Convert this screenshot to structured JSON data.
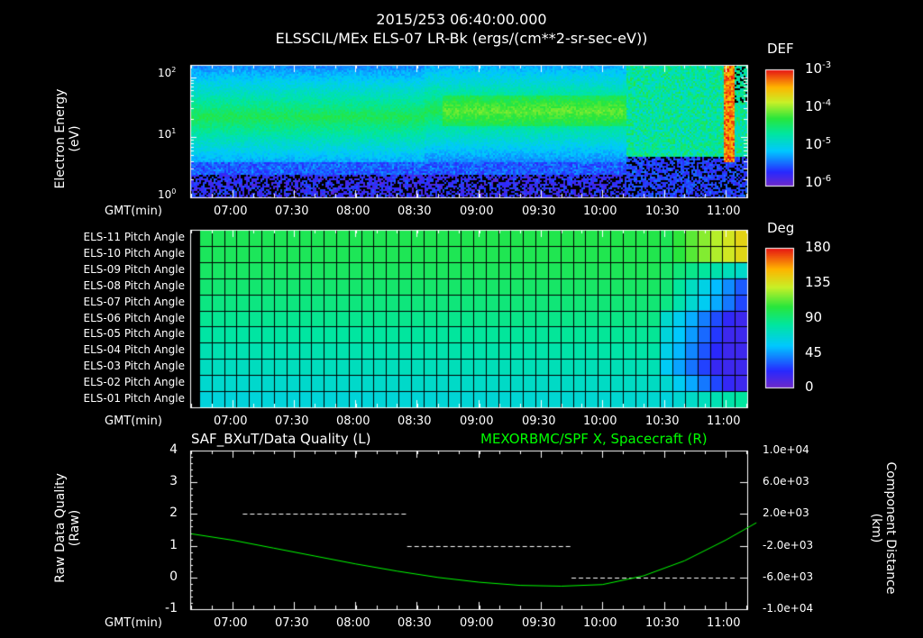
{
  "header": {
    "title_line1": "2015/253 06:40:00.000",
    "title_line2": "ELSSCIL/MEx ELS-07 LR-Bk  (ergs/(cm**2-sr-sec-eV))"
  },
  "time_label": "GMT(min)",
  "time_ticks": [
    "07:00",
    "07:30",
    "08:00",
    "08:30",
    "09:00",
    "09:30",
    "10:00",
    "10:30",
    "11:00"
  ],
  "colors": {
    "background": "#000000",
    "axis": "#ffffff",
    "quality_trace": "#ffffff",
    "spacecraft_trace": "#00ff00",
    "grid": "#000000"
  },
  "chart_data": [
    {
      "name": "spectrogram",
      "type": "heatmap",
      "title": "ELSSCIL/MEx ELS-07 LR-Bk  (ergs/(cm**2-sr-sec-eV))",
      "ylabel_line1": "Electron Energy",
      "ylabel_line2": "(eV)",
      "y_scale": "log",
      "ylim": [
        1,
        160
      ],
      "y_ticks": [
        {
          "base": "10",
          "exp": "0"
        },
        {
          "base": "10",
          "exp": "1"
        },
        {
          "base": "10",
          "exp": "2"
        }
      ],
      "x_minutes_range": [
        6.67,
        11.25
      ],
      "colorbar": {
        "label": "DEF",
        "ticks": [
          {
            "base": "10",
            "exp": "-3"
          },
          {
            "base": "10",
            "exp": "-4"
          },
          {
            "base": "10",
            "exp": "-5"
          },
          {
            "base": "10",
            "exp": "-6"
          }
        ]
      }
    },
    {
      "name": "pitch_angle",
      "type": "heatmap",
      "rows": [
        "ELS-11 Pitch Angle",
        "ELS-10 Pitch Angle",
        "ELS-09 Pitch Angle",
        "ELS-08 Pitch Angle",
        "ELS-07 Pitch Angle",
        "ELS-06 Pitch Angle",
        "ELS-05 Pitch Angle",
        "ELS-04 Pitch Angle",
        "ELS-03 Pitch Angle",
        "ELS-02 Pitch Angle",
        "ELS-01 Pitch Angle"
      ],
      "row_base_deg": [
        98,
        97,
        95,
        92,
        88,
        84,
        80,
        76,
        72,
        68,
        64
      ],
      "columns": 44,
      "colorbar": {
        "label": "Deg",
        "ticks": [
          "180",
          "135",
          "90",
          "45",
          "0"
        ],
        "range": [
          0,
          180
        ]
      }
    },
    {
      "name": "line_panel",
      "type": "line",
      "left_title": "SAF_BXuT/Data Quality (L)",
      "right_title": "MEXORBMC/SPF X, Spacecraft (R)",
      "ylabel_left_line1": "Raw Data Quality",
      "ylabel_left_line2": "(Raw)",
      "ylabel_right_line1": "Component Distance",
      "ylabel_right_line2": "(km)",
      "left_ticks": [
        "4",
        "3",
        "2",
        "1",
        "0",
        "-1"
      ],
      "left_ylim": [
        -1,
        4
      ],
      "right_ticks": [
        "1.0e+04",
        "6.0e+03",
        "2.0e+03",
        "-2.0e+03",
        "-6.0e+03",
        "-1.0e+04"
      ],
      "right_ylim": [
        -10000,
        10000
      ],
      "quality_series": [
        {
          "x_start": "07:05",
          "x_end": "08:25",
          "value": 2
        },
        {
          "x_start": "08:25",
          "x_end": "09:45",
          "value": 1
        },
        {
          "x_start": "09:45",
          "x_end": "11:05",
          "value": 0
        }
      ],
      "spacecraft_series": {
        "x_min": [
          400,
          420,
          440,
          460,
          480,
          500,
          520,
          540,
          560,
          580,
          600,
          620,
          640,
          660,
          675
        ],
        "km": [
          -500,
          -1300,
          -2300,
          -3300,
          -4300,
          -5200,
          -6000,
          -6600,
          -7000,
          -7100,
          -6900,
          -5800,
          -3900,
          -1300,
          900
        ]
      }
    }
  ]
}
